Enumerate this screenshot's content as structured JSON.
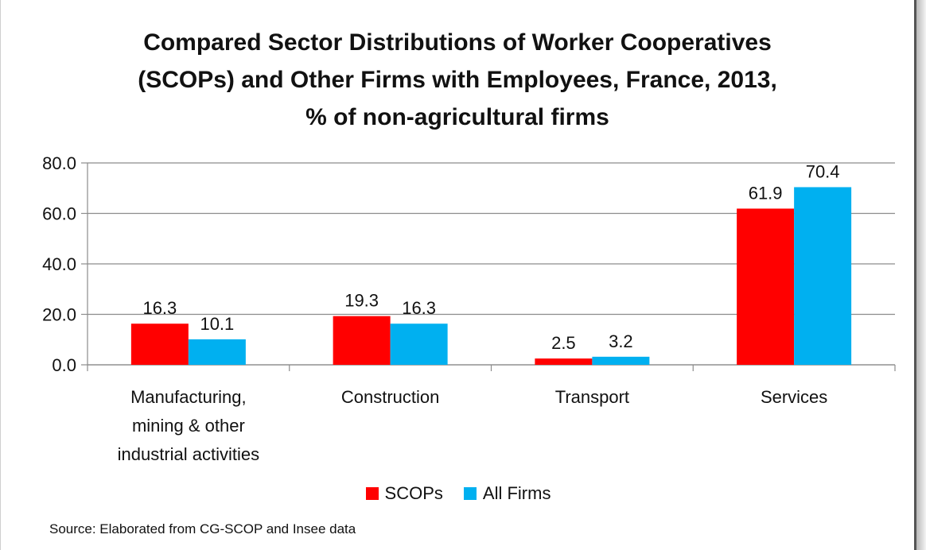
{
  "chart_data": {
    "type": "bar",
    "title": [
      "Compared Sector Distributions of Worker Cooperatives",
      "(SCOPs) and Other Firms with Employees, France, 2013,",
      "% of non-agricultural firms"
    ],
    "categories": [
      [
        "Manufacturing,",
        "mining & other",
        "industrial activities"
      ],
      [
        "Construction"
      ],
      [
        "Transport"
      ],
      [
        "Services"
      ]
    ],
    "series": [
      {
        "name": "SCOPs",
        "color": "#ff0000",
        "values": [
          16.3,
          19.3,
          2.5,
          61.9
        ],
        "labels": [
          "16.3",
          "19.3",
          "2.5",
          "61.9"
        ]
      },
      {
        "name": "All Firms",
        "color": "#00b0f0",
        "values": [
          10.1,
          16.3,
          3.2,
          70.4
        ],
        "labels": [
          "10.1",
          "16.3",
          "3.2",
          "70.4"
        ]
      }
    ],
    "yticks": [
      "0.0",
      "20.0",
      "40.0",
      "60.0",
      "80.0"
    ],
    "ylim": [
      0,
      80
    ],
    "grid": true,
    "legend_position": "bottom",
    "source": "Source: Elaborated from CG-SCOP and Insee data"
  }
}
